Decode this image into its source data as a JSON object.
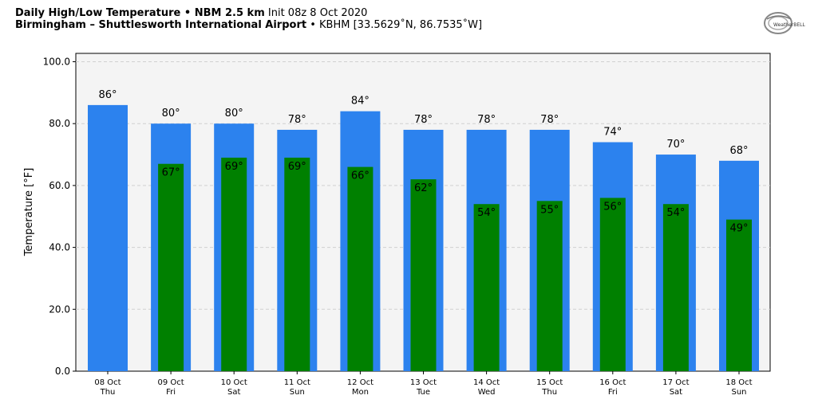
{
  "header": {
    "line1_bold": "Daily High/Low Temperature • NBM 2.5 km",
    "line1_normal": "Init 08z 8 Oct 2020",
    "line2_bold": "Birmingham – Shuttlesworth International Airport",
    "line2_normal": "• KBHM [33.5629˚N, 86.7535˚W]"
  },
  "logo": {
    "text": "WeatherBELL",
    "icon": "weatherbell-logo-icon"
  },
  "colors": {
    "high": "#2c82ee",
    "low": "#008000",
    "plot_bg": "#f4f4f4",
    "grid": "#d0d0d0"
  },
  "chart_data": {
    "type": "bar",
    "ylabel": "Temperature [°F]",
    "ylim": [
      0,
      100
    ],
    "yticks": [
      "0.0",
      "20.0",
      "40.0",
      "60.0",
      "80.0",
      "100.0"
    ],
    "grid": true,
    "categories": [
      {
        "date": "08 Oct",
        "day": "Thu"
      },
      {
        "date": "09 Oct",
        "day": "Fri"
      },
      {
        "date": "10 Oct",
        "day": "Sat"
      },
      {
        "date": "11 Oct",
        "day": "Sun"
      },
      {
        "date": "12 Oct",
        "day": "Mon"
      },
      {
        "date": "13 Oct",
        "day": "Tue"
      },
      {
        "date": "14 Oct",
        "day": "Wed"
      },
      {
        "date": "15 Oct",
        "day": "Thu"
      },
      {
        "date": "16 Oct",
        "day": "Fri"
      },
      {
        "date": "17 Oct",
        "day": "Sat"
      },
      {
        "date": "18 Oct",
        "day": "Sun"
      }
    ],
    "series": [
      {
        "values": [
          86,
          80,
          80,
          78,
          84,
          78,
          78,
          78,
          74,
          70,
          68
        ]
      },
      {
        "values": [
          null,
          67,
          69,
          69,
          66,
          62,
          54,
          55,
          56,
          54,
          49
        ]
      }
    ],
    "high_labels": [
      "86°",
      "80°",
      "80°",
      "78°",
      "84°",
      "78°",
      "78°",
      "78°",
      "74°",
      "70°",
      "68°"
    ],
    "low_labels": [
      "",
      "67°",
      "69°",
      "69°",
      "66°",
      "62°",
      "54°",
      "55°",
      "56°",
      "54°",
      "49°"
    ]
  }
}
